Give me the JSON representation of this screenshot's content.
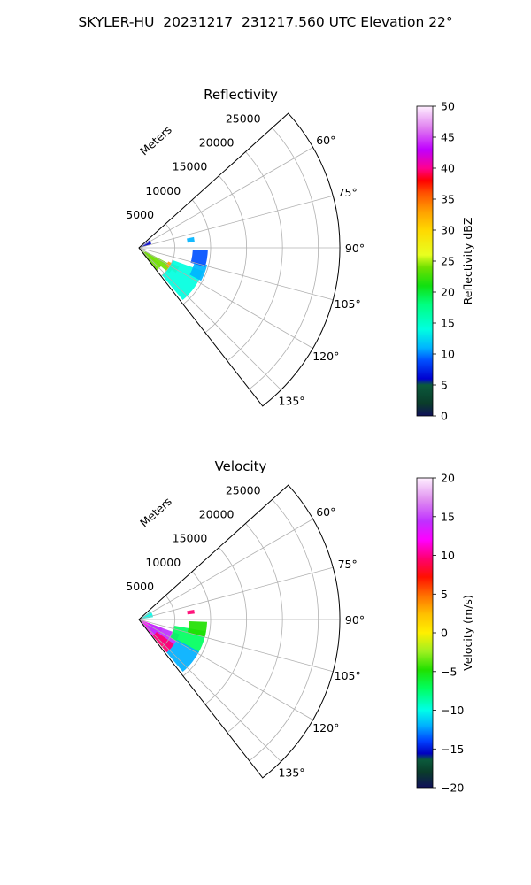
{
  "figure": {
    "title": "SKYLER-HU  20231217  231217.560 UTC Elevation 22°"
  },
  "chart_data": [
    {
      "type": "heatmap",
      "projection": "polar-sector",
      "title": "Reflectivity",
      "radial_label": "Meters",
      "radial_ticks": [
        5000,
        10000,
        15000,
        20000,
        25000
      ],
      "radial_tick_labels": [
        "5000",
        "10000",
        "15000",
        "20000",
        "25000"
      ],
      "rlim": [
        0,
        28000
      ],
      "azimuth_range_deg": [
        48,
        142
      ],
      "azimuth_ticks": [
        60,
        75,
        90,
        105,
        120,
        135
      ],
      "azimuth_tick_labels": [
        "60°",
        "75°",
        "90°",
        "105°",
        "120°",
        "135°"
      ],
      "grid": true,
      "colorbar": {
        "label": "Reflectivity dBZ",
        "vmin": 0,
        "vmax": 50,
        "ticks": [
          0,
          5,
          10,
          15,
          20,
          25,
          30,
          35,
          40,
          45,
          50
        ],
        "tick_labels": [
          "0",
          "5",
          "10",
          "15",
          "20",
          "25",
          "30",
          "35",
          "40",
          "45",
          "50"
        ],
        "colormap": "pyart_HomeyerRainbow"
      },
      "echo_regions": [
        {
          "az": [
            128,
            142
          ],
          "r": [
            300,
            4000
          ],
          "value": 24
        },
        {
          "az": [
            118,
            130
          ],
          "r": [
            1000,
            5500
          ],
          "value": 25
        },
        {
          "az": [
            115,
            124
          ],
          "r": [
            4500,
            6200
          ],
          "value": 35
        },
        {
          "az": [
            110,
            140
          ],
          "r": [
            5000,
            9500
          ],
          "value": 17
        },
        {
          "az": [
            104,
            118
          ],
          "r": [
            8000,
            9800
          ],
          "value": 13
        },
        {
          "az": [
            92,
            106
          ],
          "r": [
            7500,
            9600
          ],
          "value": 10
        },
        {
          "az": [
            79,
            84
          ],
          "r": [
            6800,
            7800
          ],
          "value": 11
        },
        {
          "az": [
            55,
            75
          ],
          "r": [
            300,
            1800
          ],
          "value": 6
        }
      ]
    },
    {
      "type": "heatmap",
      "projection": "polar-sector",
      "title": "Velocity",
      "radial_label": "Meters",
      "radial_ticks": [
        5000,
        10000,
        15000,
        20000,
        25000
      ],
      "radial_tick_labels": [
        "5000",
        "10000",
        "15000",
        "20000",
        "25000"
      ],
      "rlim": [
        0,
        28000
      ],
      "azimuth_range_deg": [
        48,
        142
      ],
      "azimuth_ticks": [
        60,
        75,
        90,
        105,
        120,
        135
      ],
      "azimuth_tick_labels": [
        "60°",
        "75°",
        "90°",
        "105°",
        "120°",
        "135°"
      ],
      "grid": true,
      "colorbar": {
        "label": "Velocity (m/s)",
        "vmin": -20,
        "vmax": 20,
        "ticks": [
          -20,
          -15,
          -10,
          -5,
          0,
          5,
          10,
          15,
          20
        ],
        "tick_labels": [
          "−20",
          "−15",
          "−10",
          "−5",
          "0",
          "5",
          "10",
          "15",
          "20"
        ],
        "colormap": "pyart_BuDRd18"
      },
      "echo_regions": [
        {
          "az": [
            110,
            140
          ],
          "r": [
            300,
            3500
          ],
          "value": 14
        },
        {
          "az": [
            110,
            135
          ],
          "r": [
            1500,
            6000
          ],
          "value": 15
        },
        {
          "az": [
            125,
            140
          ],
          "r": [
            3000,
            6000
          ],
          "value": 10
        },
        {
          "az": [
            100,
            120
          ],
          "r": [
            5000,
            9500
          ],
          "value": -5
        },
        {
          "az": [
            118,
            140
          ],
          "r": [
            6000,
            9500
          ],
          "value": -11
        },
        {
          "az": [
            92,
            105
          ],
          "r": [
            7000,
            9500
          ],
          "value": -4
        },
        {
          "az": [
            80,
            84
          ],
          "r": [
            6800,
            7800
          ],
          "value": 10
        },
        {
          "az": [
            55,
            80
          ],
          "r": [
            300,
            2000
          ],
          "value": -9
        }
      ]
    }
  ]
}
